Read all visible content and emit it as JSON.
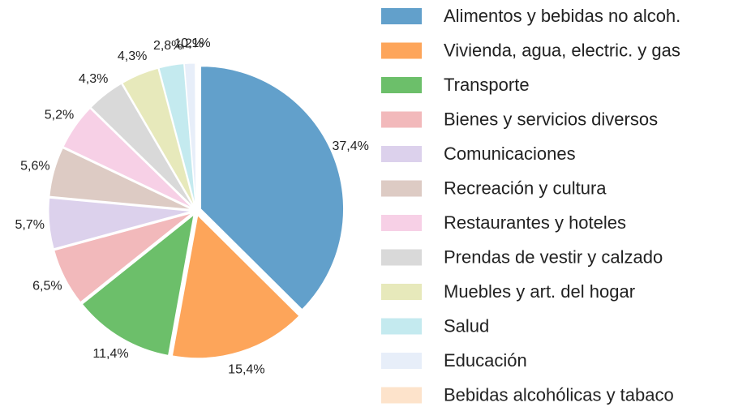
{
  "chart_data": {
    "type": "pie",
    "categories": [
      "Alimentos y bebidas no alcoh.",
      "Vivienda, agua, electric. y gas",
      "Transporte",
      "Bienes y servicios diversos",
      "Comunicaciones",
      "Recreación y cultura",
      "Restaurantes y hoteles",
      "Prendas de vestir y calzado",
      "Muebles y art. del hogar",
      "Salud",
      "Educación",
      "Bebidas alcohólicas y tabaco"
    ],
    "values": [
      37.4,
      15.4,
      11.4,
      6.5,
      5.7,
      5.6,
      5.2,
      4.3,
      4.3,
      2.8,
      1.2,
      0.1
    ],
    "value_labels": [
      "37,4%",
      "15,4%",
      "11,4%",
      "6,5%",
      "5,7%",
      "5,6%",
      "5,2%",
      "4,3%",
      "4,3%",
      "2,8%",
      "1,2%",
      "0,1%"
    ],
    "colors": [
      "#62a0cb",
      "#fda55a",
      "#6cbf6a",
      "#f2b9bb",
      "#dcd1ec",
      "#ddcbc4",
      "#f7d0e6",
      "#d9d9d9",
      "#e7e9bb",
      "#c4eaef",
      "#e7eef9",
      "#fde3cb"
    ],
    "legend": "right"
  }
}
